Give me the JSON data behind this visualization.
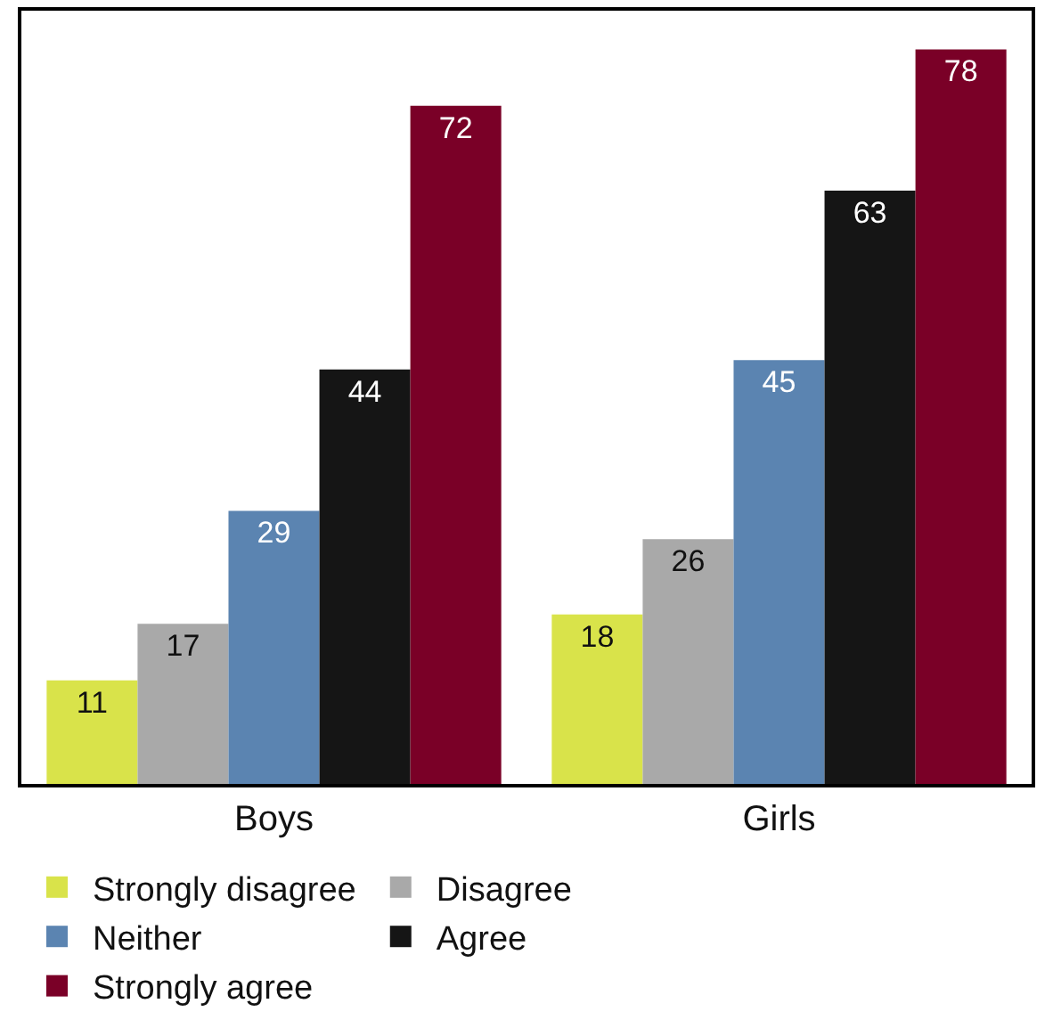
{
  "chart_data": {
    "type": "bar",
    "categories": [
      "Boys",
      "Girls"
    ],
    "series": [
      {
        "name": "Strongly disagree",
        "color": "#d9e34a",
        "values": [
          11,
          18
        ]
      },
      {
        "name": "Disagree",
        "color": "#a9a9a9",
        "values": [
          17,
          26
        ]
      },
      {
        "name": "Neither",
        "color": "#5b84b1",
        "values": [
          29,
          45
        ]
      },
      {
        "name": "Agree",
        "color": "#151515",
        "values": [
          44,
          63
        ]
      },
      {
        "name": "Strongly agree",
        "color": "#7a0027",
        "values": [
          72,
          78
        ]
      }
    ],
    "data_labels": true,
    "legend": "bottom",
    "tick_labels": "x"
  }
}
